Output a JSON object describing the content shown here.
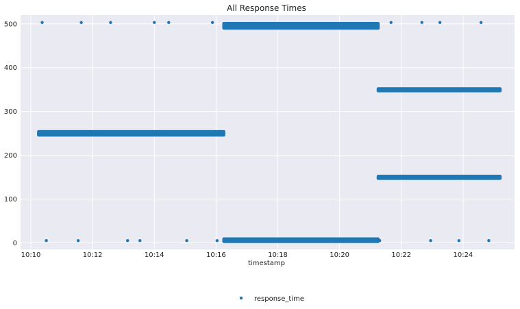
{
  "chart_data": {
    "type": "scatter",
    "title": "All Response Times",
    "xlabel": "timestamp",
    "ylabel": "",
    "x_unit": "time (HH:MM)",
    "xlim": [
      "10:09:40",
      "10:25:40"
    ],
    "ylim": [
      -15,
      520
    ],
    "x_ticks": [
      "10:10",
      "10:12",
      "10:14",
      "10:16",
      "10:18",
      "10:20",
      "10:22",
      "10:24"
    ],
    "y_ticks": [
      0,
      100,
      200,
      300,
      400,
      500
    ],
    "grid": true,
    "legend": {
      "position": "bottom-center",
      "entries": [
        "response_time"
      ]
    },
    "colors": {
      "point": "#1f77b4",
      "background": "#eaeaf2",
      "grid": "#ffffff"
    },
    "series": [
      {
        "name": "response_time",
        "dense_segments": [
          {
            "x_start": "10:10:15",
            "x_end": "10:16:15",
            "y_min": 246,
            "y_max": 254
          },
          {
            "x_start": "10:16:15",
            "x_end": "10:21:15",
            "y_min": 490,
            "y_max": 501
          },
          {
            "x_start": "10:16:15",
            "x_end": "10:21:15",
            "y_min": 3,
            "y_max": 9
          },
          {
            "x_start": "10:21:15",
            "x_end": "10:25:12",
            "y_min": 347,
            "y_max": 352
          },
          {
            "x_start": "10:21:15",
            "x_end": "10:25:12",
            "y_min": 147,
            "y_max": 152
          }
        ],
        "points": [
          {
            "x": "10:10:22",
            "y": 503
          },
          {
            "x": "10:11:38",
            "y": 503
          },
          {
            "x": "10:12:35",
            "y": 503
          },
          {
            "x": "10:14:00",
            "y": 503
          },
          {
            "x": "10:14:28",
            "y": 503
          },
          {
            "x": "10:15:53",
            "y": 503
          },
          {
            "x": "10:21:40",
            "y": 503
          },
          {
            "x": "10:22:40",
            "y": 503
          },
          {
            "x": "10:23:15",
            "y": 503
          },
          {
            "x": "10:24:35",
            "y": 503
          },
          {
            "x": "10:10:30",
            "y": 5
          },
          {
            "x": "10:11:32",
            "y": 5
          },
          {
            "x": "10:13:08",
            "y": 5
          },
          {
            "x": "10:13:32",
            "y": 5
          },
          {
            "x": "10:15:03",
            "y": 5
          },
          {
            "x": "10:16:02",
            "y": 5
          },
          {
            "x": "10:21:18",
            "y": 5
          },
          {
            "x": "10:22:57",
            "y": 5
          },
          {
            "x": "10:23:52",
            "y": 5
          },
          {
            "x": "10:24:50",
            "y": 5
          }
        ]
      }
    ]
  }
}
